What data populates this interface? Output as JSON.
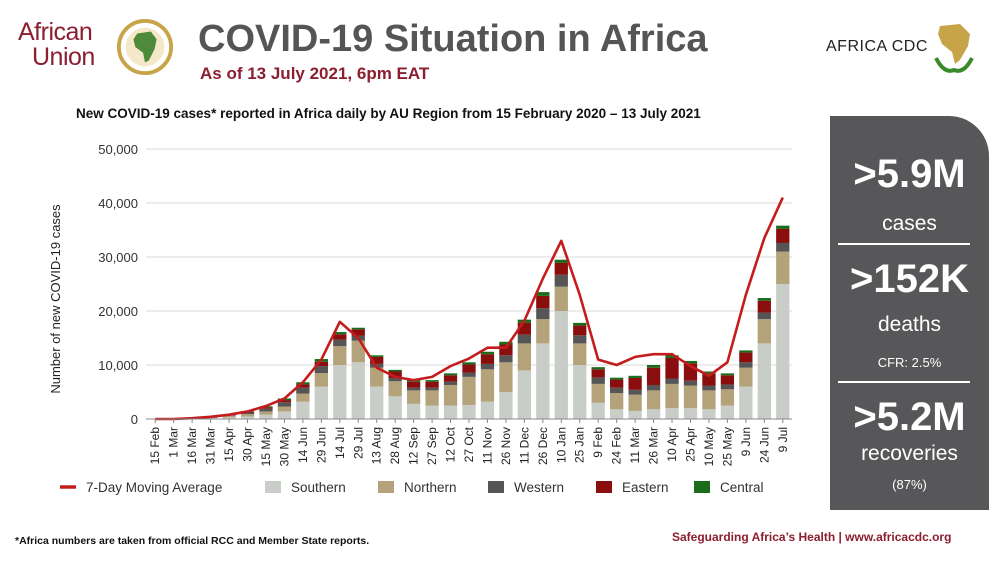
{
  "header": {
    "org_line1": "African",
    "org_line2": "Union",
    "title": "COVID-19 Situation in Africa",
    "subtitle": "As of 13 July 2021, 6pm EAT",
    "cdc_name": "AFRICA CDC"
  },
  "stats": {
    "cases_value": ">5.9M",
    "cases_label": "cases",
    "deaths_value": ">152K",
    "deaths_label": "deaths",
    "cfr": "CFR: 2.5%",
    "recoveries_value": ">5.2M",
    "recoveries_label": "recoveries",
    "recoveries_pct": "(87%)"
  },
  "footnote": "*Africa numbers are taken from official RCC and Member State reports.",
  "footer": "Safeguarding Africa’s Health | www.africacdc.org",
  "chart_data": {
    "type": "bar",
    "stacked": true,
    "title": "New COVID-19 cases* reported in Africa daily by AU Region from 15 February 2020 – 13 July 2021",
    "xlabel": "",
    "ylabel": "Number of new COVID-19 cases",
    "ylim": [
      0,
      50000
    ],
    "yticks": [
      0,
      10000,
      20000,
      30000,
      40000,
      50000
    ],
    "ytick_labels": [
      "0",
      "10,000",
      "20,000",
      "30,000",
      "40,000",
      "50,000"
    ],
    "categories": [
      "15 Feb",
      "1 Mar",
      "16 Mar",
      "31 Mar",
      "15 Apr",
      "30 Apr",
      "15 May",
      "30 May",
      "14 Jun",
      "29 Jun",
      "14 Jul",
      "29 Jul",
      "13 Aug",
      "28 Aug",
      "12 Sep",
      "27 Sep",
      "12 Oct",
      "27 Oct",
      "11 Nov",
      "26 Nov",
      "11 Dec",
      "26 Dec",
      "10 Jan",
      "25 Jan",
      "9 Feb",
      "24 Feb",
      "11 Mar",
      "26 Mar",
      "10 Apr",
      "25 Apr",
      "10 May",
      "25 May",
      "9 Jun",
      "24 Jun",
      "9 Jul"
    ],
    "series": [
      {
        "name": "Southern",
        "color": "#c9cdc8",
        "values": [
          0,
          0,
          40,
          150,
          300,
          450,
          800,
          1400,
          3200,
          6000,
          10000,
          10500,
          6000,
          4200,
          2800,
          2500,
          2500,
          2600,
          3200,
          5000,
          9000,
          14000,
          20000,
          10000,
          3000,
          1800,
          1500,
          1800,
          2000,
          2000,
          1800,
          2500,
          6000,
          14000,
          25000
        ]
      },
      {
        "name": "Northern",
        "color": "#b3a27a",
        "values": [
          0,
          0,
          60,
          150,
          300,
          450,
          600,
          900,
          1500,
          2500,
          3500,
          4000,
          3500,
          2800,
          2500,
          2800,
          3800,
          5200,
          6000,
          5500,
          5000,
          4500,
          4500,
          4000,
          3500,
          3000,
          3000,
          3500,
          4500,
          4200,
          3500,
          3000,
          3500,
          4500,
          6000
        ]
      },
      {
        "name": "Western",
        "color": "#555555",
        "values": [
          0,
          0,
          20,
          80,
          120,
          300,
          500,
          800,
          1100,
          1300,
          1200,
          900,
          700,
          600,
          500,
          500,
          600,
          800,
          1000,
          1300,
          1600,
          2000,
          2200,
          1500,
          1200,
          1000,
          900,
          1000,
          1000,
          900,
          900,
          900,
          1000,
          1200,
          1600
        ]
      },
      {
        "name": "Eastern",
        "color": "#8b0e0e",
        "values": [
          0,
          0,
          10,
          40,
          80,
          150,
          250,
          400,
          600,
          800,
          1000,
          1200,
          1300,
          1200,
          1100,
          1100,
          1200,
          1500,
          1800,
          2000,
          2200,
          2300,
          2200,
          1800,
          1500,
          1500,
          2200,
          3200,
          3800,
          3200,
          2200,
          1700,
          1800,
          2200,
          2600
        ]
      },
      {
        "name": "Central",
        "color": "#1a6b1a",
        "values": [
          0,
          0,
          5,
          20,
          50,
          100,
          200,
          300,
          400,
          500,
          400,
          300,
          300,
          300,
          300,
          300,
          350,
          400,
          450,
          500,
          600,
          700,
          600,
          500,
          400,
          350,
          400,
          500,
          500,
          450,
          400,
          350,
          400,
          500,
          600
        ]
      }
    ],
    "moving_average": {
      "name": "7-Day Moving Average",
      "color": "#c41c1c",
      "values": [
        0,
        0,
        150,
        400,
        800,
        1400,
        2400,
        3800,
        6800,
        11000,
        18000,
        15000,
        9500,
        7800,
        7200,
        7800,
        9800,
        11200,
        13200,
        13200,
        18200,
        26000,
        33000,
        23000,
        11000,
        10000,
        11500,
        12000,
        12000,
        9800,
        8000,
        10500,
        23000,
        33500,
        41000
      ]
    },
    "legend": [
      "7-Day Moving Average",
      "Southern",
      "Northern",
      "Western",
      "Eastern",
      "Central"
    ],
    "legend_position": "bottom"
  }
}
